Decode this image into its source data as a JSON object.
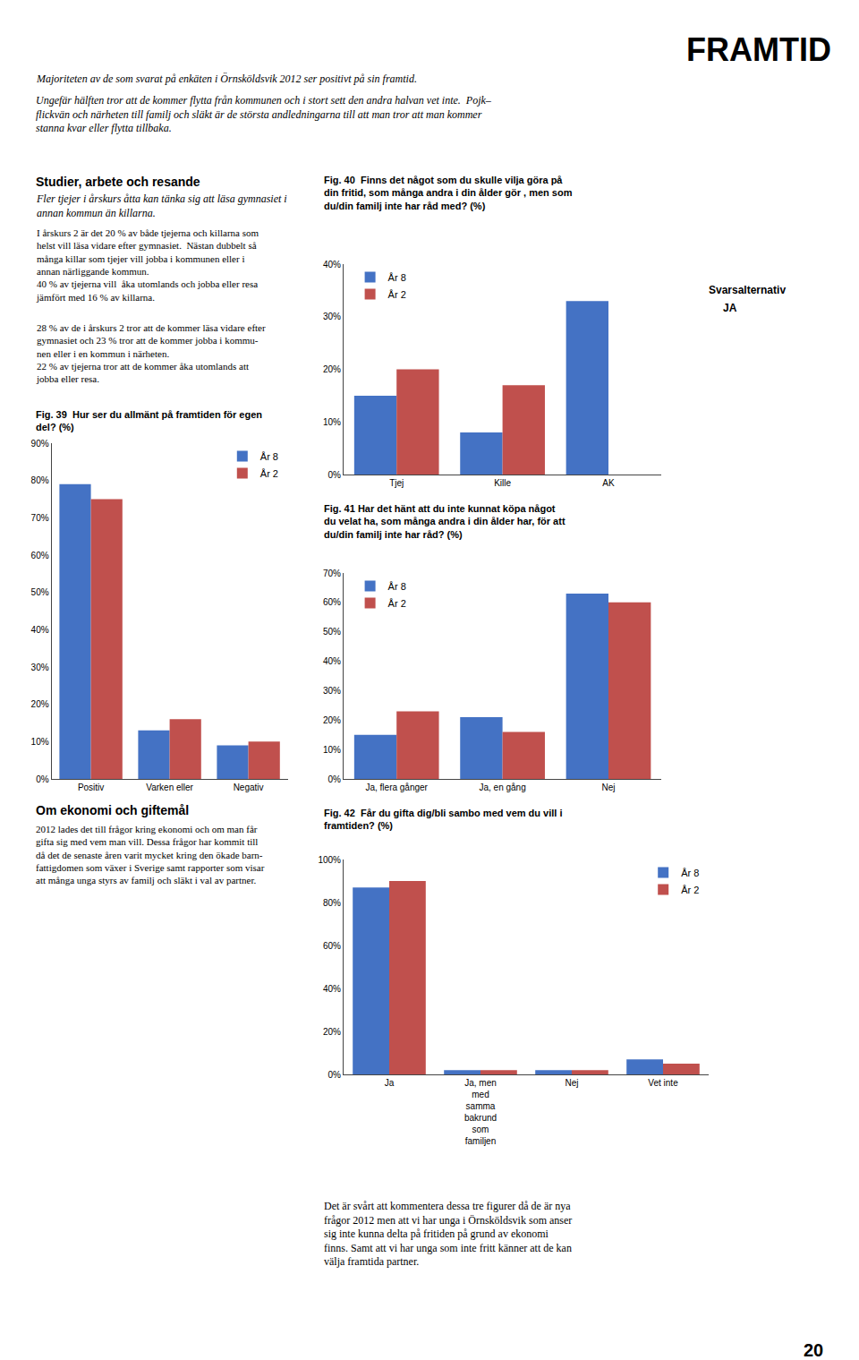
{
  "chart_data": [
    {
      "type": "bar",
      "title": "Fig. 39  Hur ser du allmänt på framtiden för egen\ndel? (%)",
      "categories": [
        "Positiv",
        "Varken eller",
        "Negativ"
      ],
      "series": [
        {
          "name": "År 8",
          "color": "#4472C4",
          "values": [
            79,
            13,
            9
          ]
        },
        {
          "name": "År 2",
          "color": "#C0504D",
          "values": [
            75,
            16,
            10
          ]
        }
      ],
      "ylim": [
        0,
        90
      ],
      "yticks": [
        {
          "value": 0,
          "label": "0%"
        },
        {
          "value": 10,
          "label": "10%"
        },
        {
          "value": 20,
          "label": "20%"
        },
        {
          "value": 30,
          "label": "30%"
        },
        {
          "value": 40,
          "label": "40%"
        },
        {
          "value": 50,
          "label": "50%"
        },
        {
          "value": 60,
          "label": "60%"
        },
        {
          "value": 70,
          "label": "70%"
        },
        {
          "value": 80,
          "label": "80%"
        },
        {
          "value": 90,
          "label": "90%"
        }
      ],
      "grid": false,
      "legend": "upper right",
      "annotations": [
        "FRAMTID",
        "Majoriteten av de som svarat på enkäten i Örnsköldsvik 2012 ser positivt på sin framtid.",
        "Ungefär hälften tror att de kommer flytta från kommunen och i stort sett den andra halvan vet inte.  Pojk–\nflickvän och närheten till familj och släkt är de största andledningarna till att man tror att man kommer\nstanna kvar eller flytta tillbaka.",
        "Studier, arbete och resande",
        "Fler tjejer i årskurs åtta kan tänka sig att läsa gymnasiet i\nannan kommun än killarna.",
        "I årskurs 2 är det 20 % av både tjejerna och killarna som\nhelst vill läsa vidare efter gymnasiet.  Nästan dubbelt så\nmånga killar som tjejer vill jobba i kommunen eller i\nannan närliggande kommun.\n40 % av tjejerna vill  åka utomlands och jobba eller resa\njämfört med 16 % av killarna.",
        "28 % av de i årskurs 2 tror att de kommer läsa vidare efter\ngymnasiet och 23 % tror att de kommer jobba i kommu-\nnen eller i en kommun i närheten.\n22 % av tjejerna tror att de kommer åka utomlands att\njobba eller resa.",
        "Om ekonomi och giftemål",
        "2012 lades det till frågor kring ekonomi och om man får\ngifta sig med vem man vill. Dessa frågor har kommit till\ndå det de senaste åren varit mycket kring den ökade barn-\nfattigdomen som växer i Sverige samt rapporter som visar\natt många unga styrs av familj och släkt i val av partner."
      ]
    },
    {
      "type": "bar",
      "title": "Fig. 40  Finns det något som du skulle vilja göra på\ndin fritid, som många andra i din ålder gör , men som\ndu/din familj inte har råd med? (%)",
      "categories": [
        "Tjej",
        "Kille",
        "AK"
      ],
      "series": [
        {
          "name": "År 8",
          "color": "#4472C4",
          "values": [
            15,
            8,
            33
          ]
        },
        {
          "name": "År 2",
          "color": "#C0504D",
          "values": [
            20,
            17,
            0
          ]
        }
      ],
      "ylim": [
        0,
        40
      ],
      "yticks": [
        {
          "value": 0,
          "label": "0%"
        },
        {
          "value": 10,
          "label": "10%"
        },
        {
          "value": 20,
          "label": "20%"
        },
        {
          "value": 30,
          "label": "30%"
        },
        {
          "value": 40,
          "label": "40%"
        }
      ],
      "grid": false,
      "legend": "upper left",
      "annotations": [
        "Svarsalternativ",
        "JA"
      ]
    },
    {
      "type": "bar",
      "title": "Fig. 41 Har det hänt att du inte kunnat köpa något\ndu velat ha, som många andra i din ålder har, för att\ndu/din familj inte har råd? (%)",
      "categories": [
        "Ja, flera gånger",
        "Ja, en gång",
        "Nej"
      ],
      "series": [
        {
          "name": "År 8",
          "color": "#4472C4",
          "values": [
            15,
            21,
            63
          ]
        },
        {
          "name": "År 2",
          "color": "#C0504D",
          "values": [
            23,
            16,
            60
          ]
        }
      ],
      "ylim": [
        0,
        70
      ],
      "yticks": [
        {
          "value": 0,
          "label": "0%"
        },
        {
          "value": 10,
          "label": "10%"
        },
        {
          "value": 20,
          "label": "20%"
        },
        {
          "value": 30,
          "label": "30%"
        },
        {
          "value": 40,
          "label": "40%"
        },
        {
          "value": 50,
          "label": "50%"
        },
        {
          "value": 60,
          "label": "60%"
        },
        {
          "value": 70,
          "label": "70%"
        }
      ],
      "grid": false,
      "legend": "upper left"
    },
    {
      "type": "bar",
      "title": "Fig. 42  Får du gifta dig/bli sambo med vem du vill i\nframtiden? (%)",
      "categories": [
        "Ja",
        "Ja, men\nmed\nsamma\nbakrund\nsom\nfamiljen",
        "Nej",
        "Vet inte"
      ],
      "series": [
        {
          "name": "År 8",
          "color": "#4472C4",
          "values": [
            87,
            2,
            2,
            7
          ]
        },
        {
          "name": "År 2",
          "color": "#C0504D",
          "values": [
            90,
            2,
            2,
            5
          ]
        }
      ],
      "ylim": [
        0,
        100
      ],
      "yticks": [
        {
          "value": 0,
          "label": "0%"
        },
        {
          "value": 20,
          "label": "20%"
        },
        {
          "value": 40,
          "label": "40%"
        },
        {
          "value": 60,
          "label": "60%"
        },
        {
          "value": 80,
          "label": "80%"
        },
        {
          "value": 100,
          "label": "100%"
        }
      ],
      "grid": false,
      "legend": "upper right",
      "annotations": [
        "Det är svårt att kommentera dessa tre figurer då de är nya\nfrågor 2012 men att vi har unga i Örnsköldsvik som anser\nsig inte kunna delta på fritiden på grund av ekonomi\nfinns. Samt att vi har unga som inte fritt känner att de kan\nvälja framtida partner.",
        "20"
      ]
    }
  ]
}
